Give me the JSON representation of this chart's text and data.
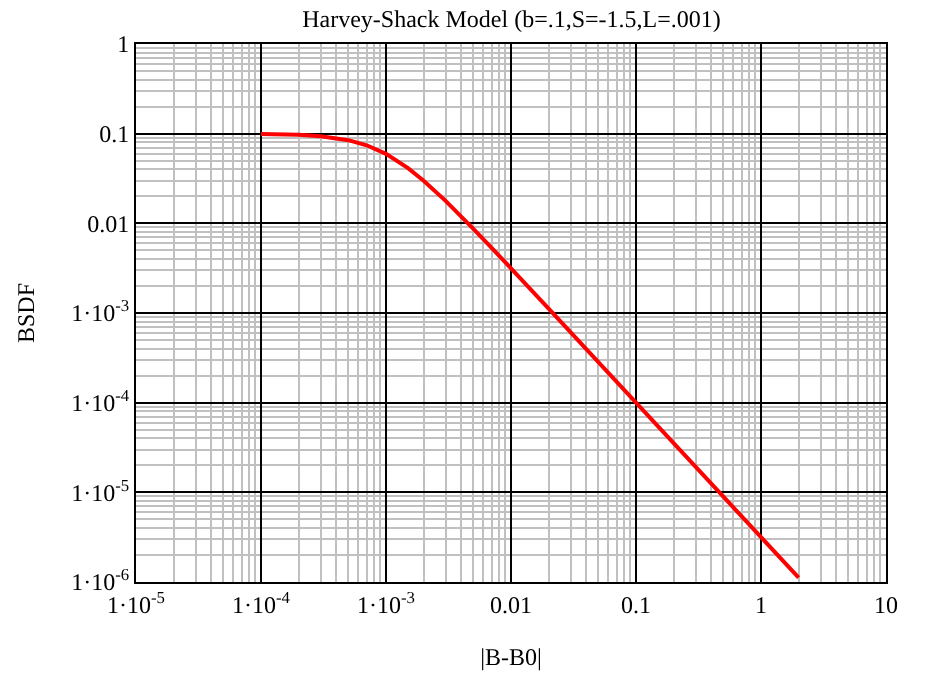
{
  "chart_data": {
    "type": "line",
    "title": "Harvey-Shack Model (b=.1,S=-1.5,L=.001)",
    "xlabel": "|B-B0|",
    "ylabel": "BSDF",
    "x": [
      0.0001,
      0.0002,
      0.0003,
      0.0005,
      0.0007,
      0.001,
      0.0015,
      0.002,
      0.003,
      0.005,
      0.007,
      0.01,
      0.02,
      0.05,
      0.1,
      0.2,
      0.5,
      1,
      2
    ],
    "series": [
      {
        "color": "#ff0000",
        "values": [
          0.0993,
          0.0971,
          0.0937,
          0.0846,
          0.0742,
          0.0595,
          0.0413,
          0.0299,
          0.0178,
          0.00868,
          0.00532,
          0.00315,
          0.00112,
          0.000283,
          0.0001,
          3.54e-05,
          8.94e-06,
          3.16e-06,
          1.12e-06
        ]
      }
    ],
    "log": "xy",
    "grid": true,
    "marker": "none",
    "line_style": "solid",
    "xlim": [
      1e-05,
      10
    ],
    "ylim": [
      1e-06,
      1
    ],
    "xticks": [
      {
        "value": 1e-05,
        "label": "1·10$^{-5}$"
      },
      {
        "value": 0.0001,
        "label": "1·10$^{-4}$"
      },
      {
        "value": 0.001,
        "label": "1·10$^{-3}$"
      },
      0.01,
      0.1,
      1,
      10
    ],
    "yticks": [
      {
        "value": 1e-06,
        "label": "1·10$^{-6}$"
      },
      {
        "value": 1e-05,
        "label": "1·10$^{-5}$"
      },
      {
        "value": 0.0001,
        "label": "1·10$^{-4}$"
      },
      {
        "value": 0.001,
        "label": "1·10$^{-3}$"
      },
      0.01,
      0.1,
      1
    ]
  }
}
